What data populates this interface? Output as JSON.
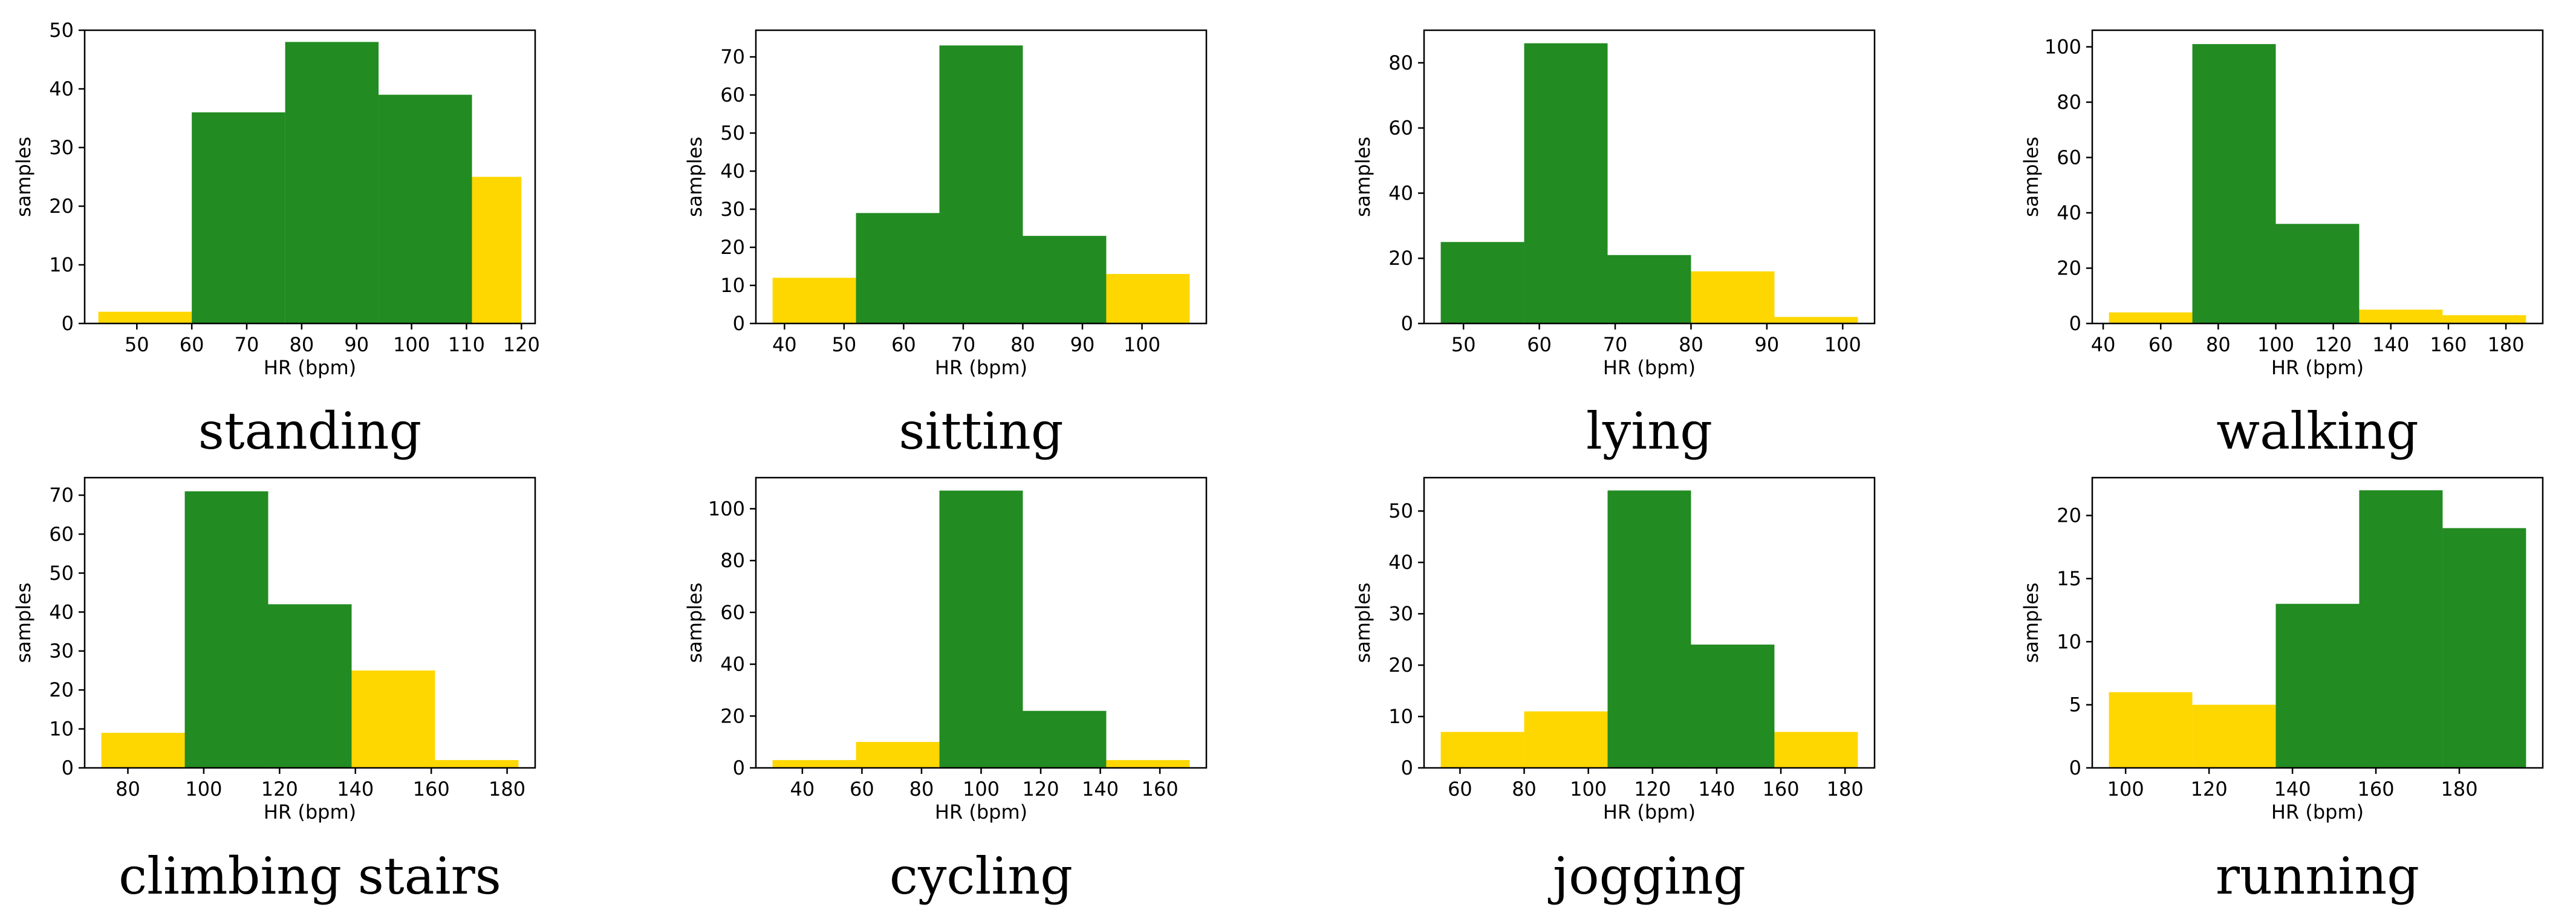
{
  "colors": {
    "green": "#228B22",
    "yellow": "#FFD700"
  },
  "chart_data": [
    {
      "type": "histogram",
      "title": "standing",
      "xlabel": "HR (bpm)",
      "ylabel": "samples",
      "edges": [
        43,
        60,
        77,
        94,
        111,
        120
      ],
      "counts": [
        2,
        36,
        48,
        39,
        25
      ],
      "bar_colors": [
        "yellow",
        "green",
        "green",
        "green",
        "yellow"
      ],
      "xlim": [
        40.5,
        122.5
      ],
      "ylim": [
        0,
        50
      ],
      "xticks": [
        50,
        60,
        70,
        80,
        90,
        100,
        110,
        120
      ],
      "yticks": [
        0,
        10,
        20,
        30,
        40,
        50
      ]
    },
    {
      "type": "histogram",
      "title": "sitting",
      "xlabel": "HR (bpm)",
      "ylabel": "samples",
      "edges": [
        38,
        52,
        66,
        80,
        94,
        108
      ],
      "counts": [
        12,
        29,
        73,
        23,
        13
      ],
      "bar_colors": [
        "yellow",
        "green",
        "green",
        "green",
        "yellow"
      ],
      "xlim": [
        35.2,
        110.8
      ],
      "ylim": [
        0,
        77
      ],
      "xticks": [
        40,
        50,
        60,
        70,
        80,
        90,
        100
      ],
      "yticks": [
        0,
        10,
        20,
        30,
        40,
        50,
        60,
        70
      ]
    },
    {
      "type": "histogram",
      "title": "lying",
      "xlabel": "HR (bpm)",
      "ylabel": "samples",
      "edges": [
        47,
        58,
        69,
        80,
        91,
        102
      ],
      "counts": [
        25,
        86,
        21,
        16,
        2
      ],
      "bar_colors": [
        "green",
        "green",
        "green",
        "yellow",
        "yellow"
      ],
      "xlim": [
        44.8,
        104.2
      ],
      "ylim": [
        0,
        90
      ],
      "xticks": [
        50,
        60,
        70,
        80,
        90,
        100
      ],
      "yticks": [
        0,
        20,
        40,
        60,
        80
      ]
    },
    {
      "type": "histogram",
      "title": "walking",
      "xlabel": "HR (bpm)",
      "ylabel": "samples",
      "edges": [
        42,
        71,
        100,
        129,
        158,
        187
      ],
      "counts": [
        4,
        101,
        36,
        5,
        3
      ],
      "bar_colors": [
        "yellow",
        "green",
        "green",
        "yellow",
        "yellow"
      ],
      "xlim": [
        36.2,
        192.8
      ],
      "ylim": [
        0,
        106
      ],
      "xticks": [
        40,
        60,
        80,
        100,
        120,
        140,
        160,
        180
      ],
      "yticks": [
        0,
        20,
        40,
        60,
        80,
        100
      ]
    },
    {
      "type": "histogram",
      "title": "climbing stairs",
      "xlabel": "HR (bpm)",
      "ylabel": "samples",
      "edges": [
        73,
        95,
        117,
        139,
        161,
        183
      ],
      "counts": [
        9,
        71,
        42,
        25,
        2
      ],
      "bar_colors": [
        "yellow",
        "green",
        "green",
        "yellow",
        "yellow"
      ],
      "xlim": [
        68.6,
        187.4
      ],
      "ylim": [
        0,
        74.5
      ],
      "xticks": [
        80,
        100,
        120,
        140,
        160,
        180
      ],
      "yticks": [
        0,
        10,
        20,
        30,
        40,
        50,
        60,
        70
      ]
    },
    {
      "type": "histogram",
      "title": "cycling",
      "xlabel": "HR (bpm)",
      "ylabel": "samples",
      "edges": [
        30,
        58,
        86,
        114,
        142,
        170
      ],
      "counts": [
        3,
        10,
        107,
        22,
        3
      ],
      "bar_colors": [
        "yellow",
        "yellow",
        "green",
        "green",
        "yellow"
      ],
      "xlim": [
        24.4,
        175.6
      ],
      "ylim": [
        0,
        112
      ],
      "xticks": [
        40,
        60,
        80,
        100,
        120,
        140,
        160
      ],
      "yticks": [
        0,
        20,
        40,
        60,
        80,
        100
      ]
    },
    {
      "type": "histogram",
      "title": "jogging",
      "xlabel": "HR (bpm)",
      "ylabel": "samples",
      "edges": [
        54,
        80,
        106,
        132,
        158,
        184
      ],
      "counts": [
        7,
        11,
        54,
        24,
        7
      ],
      "bar_colors": [
        "yellow",
        "yellow",
        "green",
        "green",
        "yellow"
      ],
      "xlim": [
        48.8,
        189.2
      ],
      "ylim": [
        0,
        56.5
      ],
      "xticks": [
        60,
        80,
        100,
        120,
        140,
        160,
        180
      ],
      "yticks": [
        0,
        10,
        20,
        30,
        40,
        50
      ]
    },
    {
      "type": "histogram",
      "title": "running",
      "xlabel": "HR (bpm)",
      "ylabel": "samples",
      "edges": [
        96,
        116,
        136,
        156,
        176,
        196
      ],
      "counts": [
        6,
        5,
        13,
        22,
        19
      ],
      "bar_colors": [
        "yellow",
        "yellow",
        "green",
        "green",
        "green"
      ],
      "xlim": [
        92,
        200
      ],
      "ylim": [
        0,
        23
      ],
      "xticks": [
        100,
        120,
        140,
        160,
        180
      ],
      "yticks": [
        0,
        5,
        10,
        15,
        20
      ]
    }
  ]
}
